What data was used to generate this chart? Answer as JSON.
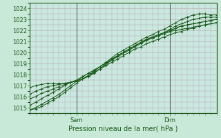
{
  "title": "",
  "xlabel": "Pression niveau de la mer( hPa )",
  "ylim": [
    1014.5,
    1024.5
  ],
  "xlim": [
    0,
    96
  ],
  "yticks": [
    1015,
    1016,
    1017,
    1018,
    1019,
    1020,
    1021,
    1022,
    1023,
    1024
  ],
  "outer_bg": "#c8e8d8",
  "plot_bg_color": "#c8e8e0",
  "grid_color": "#c0a0a8",
  "line_color": "#1a5c1a",
  "vline_color": "#606060",
  "sam_x": 24,
  "dim_x": 72,
  "lines": [
    {
      "x": [
        0,
        3,
        6,
        9,
        12,
        15,
        18,
        21,
        24,
        27,
        30,
        33,
        36,
        39,
        42,
        45,
        48,
        51,
        54,
        57,
        60,
        63,
        66,
        69,
        72,
        75,
        78,
        81,
        84,
        87,
        90,
        93,
        96
      ],
      "y": [
        1014.8,
        1015.0,
        1015.3,
        1015.6,
        1015.9,
        1016.2,
        1016.6,
        1017.0,
        1017.4,
        1017.8,
        1018.1,
        1018.4,
        1018.7,
        1019.0,
        1019.3,
        1019.6,
        1019.9,
        1020.2,
        1020.5,
        1020.8,
        1021.1,
        1021.3,
        1021.5,
        1021.7,
        1021.9,
        1022.0,
        1022.1,
        1022.2,
        1022.3,
        1022.4,
        1022.5,
        1022.6,
        1022.7
      ]
    },
    {
      "x": [
        0,
        3,
        6,
        9,
        12,
        15,
        18,
        21,
        24,
        27,
        30,
        33,
        36,
        39,
        42,
        45,
        48,
        51,
        54,
        57,
        60,
        63,
        66,
        69,
        72,
        75,
        78,
        81,
        84,
        87,
        90,
        93,
        96
      ],
      "y": [
        1015.2,
        1015.5,
        1015.8,
        1016.1,
        1016.4,
        1016.7,
        1017.0,
        1017.3,
        1017.5,
        1017.8,
        1018.1,
        1018.4,
        1018.7,
        1019.0,
        1019.4,
        1019.7,
        1020.0,
        1020.3,
        1020.6,
        1020.9,
        1021.2,
        1021.4,
        1021.6,
        1021.8,
        1022.0,
        1022.2,
        1022.4,
        1022.5,
        1022.6,
        1022.7,
        1022.8,
        1022.9,
        1023.0
      ]
    },
    {
      "x": [
        0,
        3,
        6,
        9,
        12,
        15,
        18,
        21,
        24,
        27,
        30,
        33,
        36,
        39,
        42,
        45,
        48,
        51,
        54,
        57,
        60,
        63,
        66,
        69,
        72,
        75,
        78,
        81,
        84,
        87,
        90,
        93,
        96
      ],
      "y": [
        1015.8,
        1016.0,
        1016.3,
        1016.5,
        1016.7,
        1016.9,
        1017.1,
        1017.3,
        1017.4,
        1017.6,
        1017.9,
        1018.2,
        1018.5,
        1018.9,
        1019.3,
        1019.7,
        1020.0,
        1020.3,
        1020.6,
        1020.9,
        1021.1,
        1021.3,
        1021.5,
        1021.7,
        1021.9,
        1022.2,
        1022.4,
        1022.5,
        1022.6,
        1022.7,
        1022.8,
        1022.9,
        1023.0
      ]
    },
    {
      "x": [
        0,
        3,
        6,
        9,
        12,
        15,
        18,
        21,
        24,
        27,
        30,
        33,
        36,
        39,
        42,
        45,
        48,
        51,
        54,
        57,
        60,
        63,
        66,
        69,
        72,
        75,
        78,
        81,
        84,
        87,
        90,
        93,
        96
      ],
      "y": [
        1016.2,
        1016.5,
        1016.7,
        1016.9,
        1017.0,
        1017.1,
        1017.2,
        1017.3,
        1017.4,
        1017.6,
        1017.8,
        1018.1,
        1018.5,
        1018.9,
        1019.3,
        1019.7,
        1020.0,
        1020.3,
        1020.6,
        1020.9,
        1021.2,
        1021.4,
        1021.6,
        1021.8,
        1022.1,
        1022.4,
        1022.6,
        1022.8,
        1023.0,
        1023.1,
        1023.2,
        1023.2,
        1023.2
      ]
    },
    {
      "x": [
        0,
        3,
        6,
        9,
        12,
        15,
        18,
        21,
        24,
        27,
        30,
        33,
        36,
        39,
        42,
        45,
        48,
        51,
        54,
        57,
        60,
        63,
        66,
        69,
        72,
        75,
        78,
        81,
        84,
        87,
        90,
        93,
        96
      ],
      "y": [
        1016.8,
        1017.0,
        1017.1,
        1017.2,
        1017.2,
        1017.2,
        1017.2,
        1017.3,
        1017.4,
        1017.6,
        1017.9,
        1018.3,
        1018.7,
        1019.1,
        1019.5,
        1019.9,
        1020.2,
        1020.5,
        1020.8,
        1021.1,
        1021.4,
        1021.6,
        1021.9,
        1022.1,
        1022.4,
        1022.7,
        1023.0,
        1023.2,
        1023.4,
        1023.5,
        1023.5,
        1023.4,
        1023.4
      ]
    },
    {
      "x": [
        0,
        3,
        6,
        9,
        12,
        15,
        18,
        21,
        24,
        27,
        30,
        33,
        36,
        39,
        42,
        45,
        48,
        51,
        54,
        57,
        60,
        63,
        66,
        69,
        72,
        75,
        78,
        81,
        84,
        87,
        90,
        93,
        96
      ],
      "y": [
        1014.8,
        1014.9,
        1015.1,
        1015.4,
        1015.7,
        1016.0,
        1016.4,
        1016.8,
        1017.2,
        1017.6,
        1017.9,
        1018.2,
        1018.5,
        1018.8,
        1019.1,
        1019.4,
        1019.7,
        1020.0,
        1020.3,
        1020.5,
        1020.8,
        1021.0,
        1021.2,
        1021.4,
        1021.6,
        1021.8,
        1021.9,
        1022.1,
        1022.2,
        1022.4,
        1022.5,
        1022.6,
        1022.7
      ]
    }
  ]
}
